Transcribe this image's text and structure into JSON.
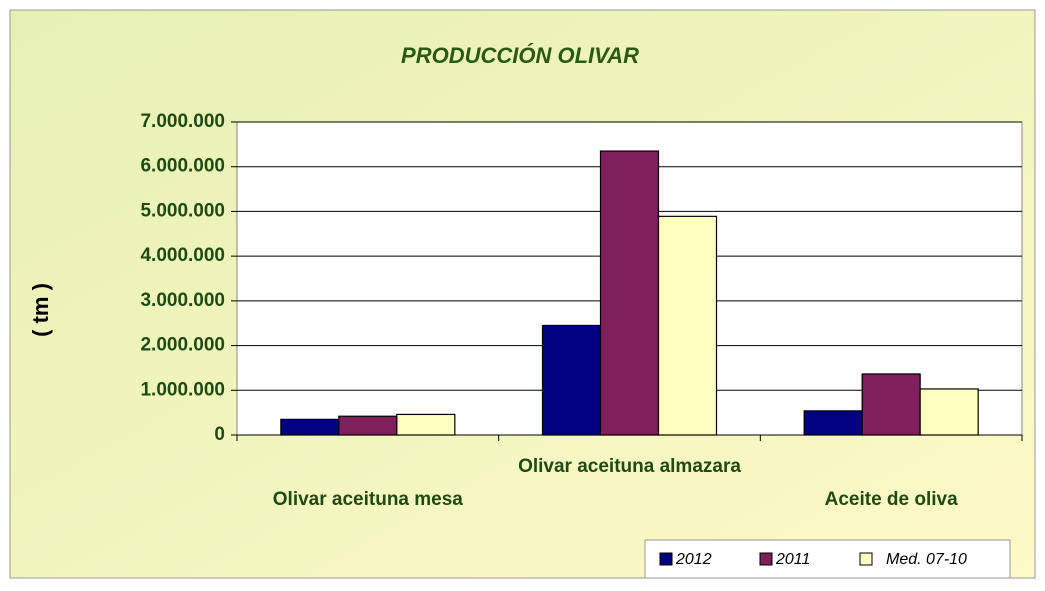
{
  "chart_data": {
    "type": "bar",
    "title": "PRODUCCIÓN OLIVAR",
    "ylabel": "( tm )",
    "categories": [
      "Olivar aceituna mesa",
      "Olivar aceituna almazara",
      "Aceite de oliva"
    ],
    "series": [
      {
        "name": "2012",
        "color": "#000080",
        "values": [
          350000,
          2450000,
          540000
        ]
      },
      {
        "name": "2011",
        "color": "#7f1f5c",
        "values": [
          420000,
          6350000,
          1365000
        ]
      },
      {
        "name": "Med. 07-10",
        "color": "#ffffc0",
        "values": [
          460000,
          4890000,
          1030000
        ]
      }
    ],
    "ylim": [
      0,
      7000000
    ],
    "yticks": [
      0,
      {
        "value": 1000000,
        "label": "1.000.000"
      },
      {
        "value": 2000000,
        "label": "2.000.000"
      },
      {
        "value": 3000000,
        "label": "3.000.000"
      },
      {
        "value": 4000000,
        "label": "4.000.000"
      },
      {
        "value": 5000000,
        "label": "5.000.000"
      },
      {
        "value": 6000000,
        "label": "6.000.000"
      },
      {
        "value": 7000000,
        "label": "7.000.000"
      }
    ],
    "grid": true,
    "legend": "bottom-right"
  }
}
